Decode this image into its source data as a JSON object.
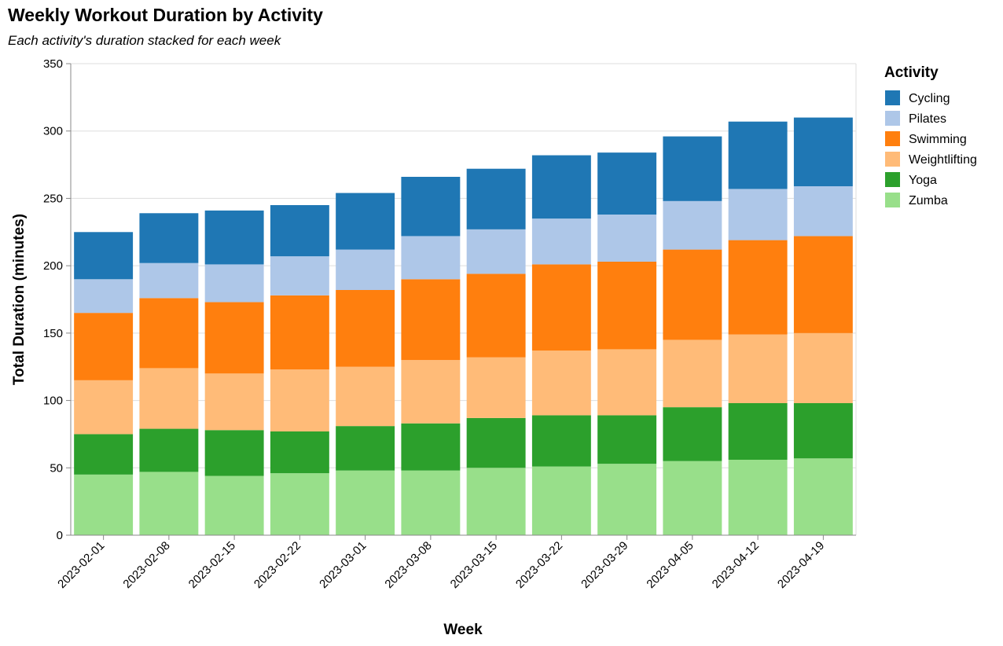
{
  "chart_data": {
    "type": "bar",
    "stacked": true,
    "title": "Weekly Workout Duration by Activity",
    "subtitle": "Each activity's duration stacked for each week",
    "xlabel": "Week",
    "ylabel": "Total Duration (minutes)",
    "ylim": [
      0,
      350
    ],
    "yticks": [
      0,
      50,
      100,
      150,
      200,
      250,
      300,
      350
    ],
    "grid": true,
    "legend_title": "Activity",
    "legend_position": "right",
    "categories": [
      "2023-02-01",
      "2023-02-08",
      "2023-02-15",
      "2023-02-22",
      "2023-03-01",
      "2023-03-08",
      "2023-03-15",
      "2023-03-22",
      "2023-03-29",
      "2023-04-05",
      "2023-04-12",
      "2023-04-19"
    ],
    "series": [
      {
        "name": "Zumba",
        "color": "#98df8a",
        "values": [
          45,
          47,
          44,
          46,
          48,
          48,
          50,
          51,
          53,
          55,
          56,
          57
        ]
      },
      {
        "name": "Yoga",
        "color": "#2ca02c",
        "values": [
          30,
          32,
          34,
          31,
          33,
          35,
          37,
          38,
          36,
          40,
          42,
          41
        ]
      },
      {
        "name": "Weightlifting",
        "color": "#ffbb78",
        "values": [
          40,
          45,
          42,
          46,
          44,
          47,
          45,
          48,
          49,
          50,
          51,
          52
        ]
      },
      {
        "name": "Swimming",
        "color": "#ff7f0e",
        "values": [
          50,
          52,
          53,
          55,
          57,
          60,
          62,
          64,
          65,
          67,
          70,
          72
        ]
      },
      {
        "name": "Pilates",
        "color": "#aec7e8",
        "values": [
          25,
          26,
          28,
          29,
          30,
          32,
          33,
          34,
          35,
          36,
          38,
          37
        ]
      },
      {
        "name": "Cycling",
        "color": "#1f77b4",
        "values": [
          35,
          37,
          40,
          38,
          42,
          44,
          45,
          47,
          46,
          48,
          50,
          51
        ]
      }
    ],
    "legend_order": [
      "Cycling",
      "Pilates",
      "Swimming",
      "Weightlifting",
      "Yoga",
      "Zumba"
    ]
  }
}
